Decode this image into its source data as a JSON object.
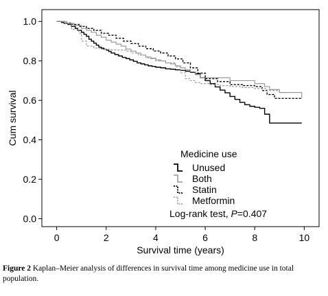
{
  "chart_data": {
    "type": "line",
    "step": true,
    "xlabel": "Survival time (years)",
    "ylabel": "Cum survival",
    "xlim": [
      -0.6,
      10.6
    ],
    "ylim": [
      -0.04,
      1.06
    ],
    "xticks": [
      "0",
      "2",
      "4",
      "6",
      "8",
      "10"
    ],
    "yticks": [
      "0.0",
      "0.2",
      "0.4",
      "0.6",
      "0.8",
      "1.0"
    ],
    "legend_title": "Medicine use",
    "legend_position": "bottom-center",
    "annotation_prefix": "Log-rank test, ",
    "annotation_p": "P",
    "annotation_suffix": "=0.407",
    "series": [
      {
        "name": "Unused",
        "color": "#000000",
        "dash": "",
        "width": 1.4,
        "x": [
          0,
          0.2,
          0.3,
          0.45,
          0.6,
          0.75,
          0.85,
          1.0,
          1.1,
          1.2,
          1.3,
          1.4,
          1.5,
          1.6,
          1.7,
          1.8,
          1.9,
          2.0,
          2.1,
          2.2,
          2.35,
          2.5,
          2.65,
          2.8,
          2.95,
          3.1,
          3.25,
          3.4,
          3.55,
          3.7,
          3.85,
          4.0,
          4.2,
          4.4,
          4.6,
          4.8,
          5.0,
          5.2,
          5.4,
          5.6,
          5.8,
          6.0,
          6.2,
          6.4,
          6.6,
          6.8,
          7.0,
          7.2,
          7.4,
          7.6,
          7.8,
          8.0,
          8.2,
          8.4,
          8.6,
          9.0,
          9.9
        ],
        "y": [
          1.0,
          0.995,
          0.99,
          0.985,
          0.975,
          0.965,
          0.955,
          0.945,
          0.935,
          0.925,
          0.91,
          0.9,
          0.89,
          0.88,
          0.87,
          0.865,
          0.86,
          0.855,
          0.848,
          0.84,
          0.832,
          0.825,
          0.818,
          0.812,
          0.805,
          0.798,
          0.79,
          0.785,
          0.78,
          0.775,
          0.772,
          0.768,
          0.765,
          0.76,
          0.758,
          0.755,
          0.752,
          0.748,
          0.742,
          0.735,
          0.715,
          0.7,
          0.685,
          0.668,
          0.652,
          0.638,
          0.62,
          0.605,
          0.59,
          0.578,
          0.57,
          0.565,
          0.56,
          0.53,
          0.485,
          0.485,
          0.485
        ]
      },
      {
        "name": "Both",
        "color": "#999999",
        "dash": "",
        "width": 1.2,
        "x": [
          0,
          0.4,
          0.7,
          1.0,
          1.2,
          1.4,
          1.6,
          1.8,
          2.0,
          2.2,
          2.4,
          2.6,
          2.8,
          3.0,
          3.2,
          3.4,
          3.6,
          3.8,
          4.0,
          4.2,
          4.4,
          4.6,
          4.8,
          5.0,
          5.2,
          5.4,
          5.6,
          5.8,
          6.2,
          6.6,
          7.0,
          7.5,
          8.0,
          8.4,
          8.6,
          9.0,
          9.9
        ],
        "y": [
          1.0,
          0.99,
          0.98,
          0.965,
          0.955,
          0.945,
          0.93,
          0.92,
          0.905,
          0.895,
          0.885,
          0.875,
          0.86,
          0.85,
          0.84,
          0.83,
          0.82,
          0.812,
          0.805,
          0.8,
          0.79,
          0.785,
          0.775,
          0.765,
          0.755,
          0.745,
          0.73,
          0.715,
          0.715,
          0.715,
          0.7,
          0.7,
          0.685,
          0.67,
          0.655,
          0.64,
          0.61
        ]
      },
      {
        "name": "Statin",
        "color": "#000000",
        "dash": "3,2",
        "width": 1.4,
        "x": [
          0,
          0.3,
          0.6,
          0.9,
          1.2,
          1.5,
          1.8,
          2.1,
          2.4,
          2.7,
          3.0,
          3.3,
          3.6,
          3.9,
          4.2,
          4.5,
          4.8,
          5.1,
          5.4,
          5.7,
          6.0,
          6.5,
          7.0,
          7.5,
          8.0,
          8.3,
          8.5,
          8.8,
          9.9
        ],
        "y": [
          1.0,
          0.992,
          0.985,
          0.975,
          0.965,
          0.955,
          0.94,
          0.93,
          0.915,
          0.9,
          0.888,
          0.875,
          0.862,
          0.85,
          0.84,
          0.825,
          0.81,
          0.79,
          0.765,
          0.738,
          0.71,
          0.695,
          0.68,
          0.675,
          0.67,
          0.65,
          0.63,
          0.61,
          0.61
        ]
      },
      {
        "name": "Metformin",
        "color": "#999999",
        "dash": "3,2",
        "width": 1.2,
        "x": [
          0,
          0.3,
          0.6,
          0.9,
          1.0,
          1.2,
          1.5,
          1.8,
          2.0,
          2.2,
          2.5,
          2.8,
          3.0,
          3.3,
          3.6,
          4.0,
          4.4,
          4.8,
          5.0,
          5.2,
          5.4,
          5.6,
          5.8,
          6.2,
          6.6,
          7.0,
          7.5,
          8.0,
          8.5,
          9.0,
          9.3
        ],
        "y": [
          1.0,
          0.99,
          0.96,
          0.94,
          0.9,
          0.875,
          0.865,
          0.86,
          0.858,
          0.856,
          0.855,
          0.85,
          0.84,
          0.83,
          0.815,
          0.8,
          0.79,
          0.77,
          0.74,
          0.71,
          0.7,
          0.69,
          0.685,
          0.68,
          0.675,
          0.67,
          0.665,
          0.66,
          0.65,
          0.64,
          0.64
        ]
      }
    ]
  },
  "caption": {
    "label": "Figure 2",
    "text": " Kaplan–Meier analysis of differences in survival time among medicine use in total population."
  }
}
